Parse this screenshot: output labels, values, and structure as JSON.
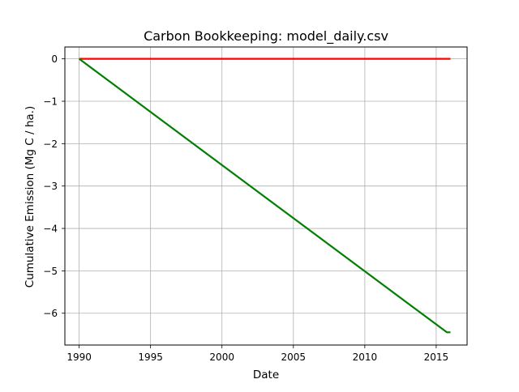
{
  "chart_data": {
    "type": "line",
    "title": "Carbon Bookkeeping: model_daily.csv",
    "xlabel": "Date",
    "ylabel": "Cumulative Emission (Mg C / ha.)",
    "xlim": [
      "1989-01-01",
      "2017-03-01"
    ],
    "ylim": [
      -6.75,
      0.28
    ],
    "x_ticks": [
      {
        "label": "1990",
        "value": "1990-01-01"
      },
      {
        "label": "1995",
        "value": "1995-01-01"
      },
      {
        "label": "2000",
        "value": "2000-01-01"
      },
      {
        "label": "2005",
        "value": "2005-01-01"
      },
      {
        "label": "2010",
        "value": "2010-01-01"
      },
      {
        "label": "2015",
        "value": "2015-01-01"
      }
    ],
    "y_ticks": [
      {
        "label": "0",
        "value": 0
      },
      {
        "label": "−1",
        "value": -1
      },
      {
        "label": "−2",
        "value": -2
      },
      {
        "label": "−3",
        "value": -3
      },
      {
        "label": "−4",
        "value": -4
      },
      {
        "label": "−5",
        "value": -5
      },
      {
        "label": "−6",
        "value": -6
      }
    ],
    "grid": true,
    "series": [
      {
        "color": "#ff0000",
        "points": [
          {
            "x": "1990-01-01",
            "y": 0
          },
          {
            "x": "2016-01-01",
            "y": 0
          }
        ]
      },
      {
        "color": "#008000",
        "points": [
          {
            "x": "1990-01-01",
            "y": 0
          },
          {
            "x": "2015-10-01",
            "y": -6.45
          },
          {
            "x": "2016-01-01",
            "y": -6.45
          }
        ]
      }
    ]
  }
}
